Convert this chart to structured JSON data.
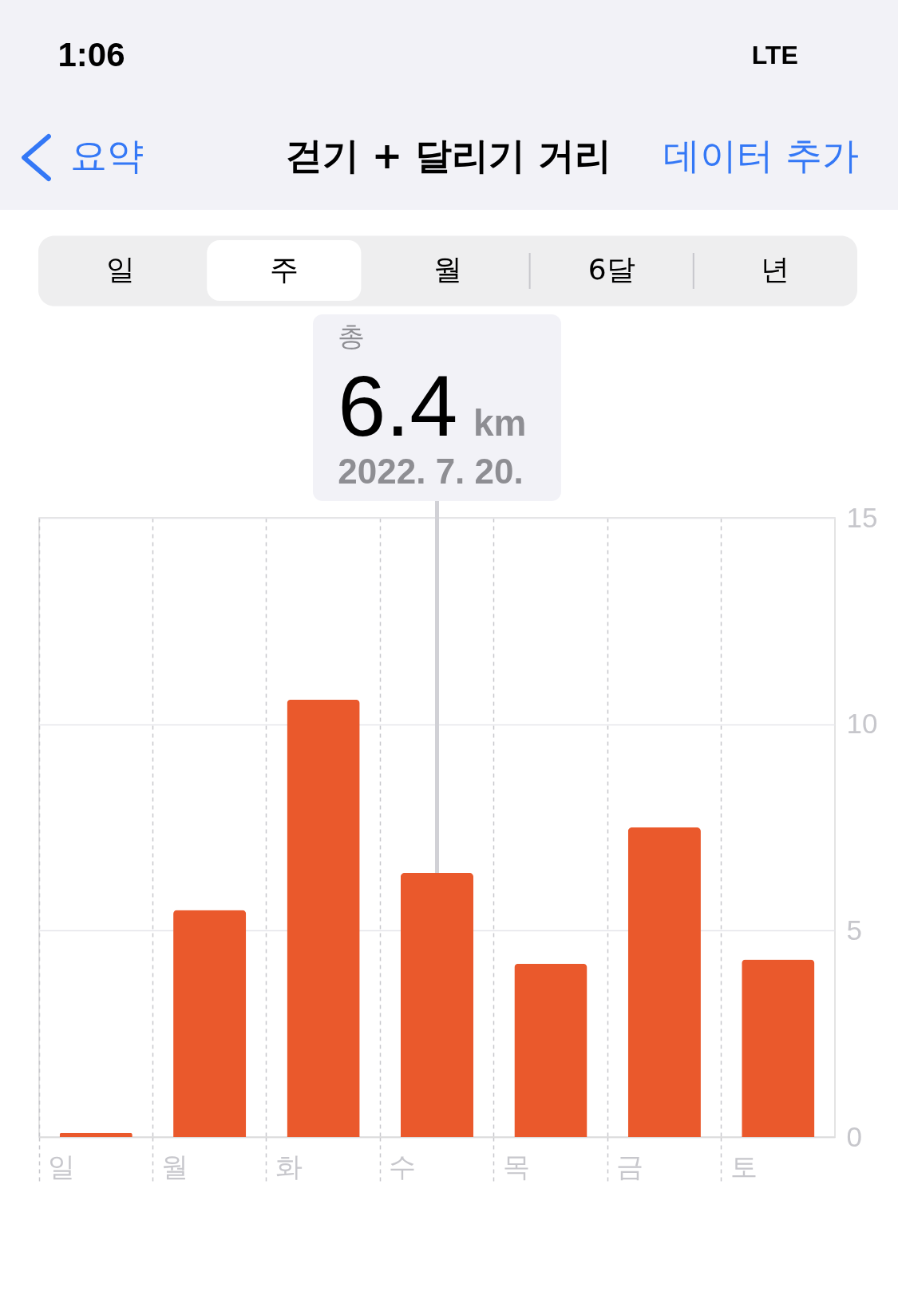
{
  "chart_data": {
    "type": "bar",
    "title": "걷기 + 달리기 거리",
    "categories": [
      "일",
      "월",
      "화",
      "수",
      "목",
      "금",
      "토"
    ],
    "values": [
      0.1,
      5.5,
      10.6,
      6.4,
      4.2,
      7.5,
      4.3
    ],
    "color": "#ea592c",
    "ylim": [
      0,
      15
    ],
    "yticks": [
      0,
      5,
      10,
      15
    ],
    "grid": true,
    "annotations": [
      "1:06",
      "LTE",
      "요약",
      "데이터 추가",
      "일",
      "주",
      "월",
      "6달",
      "년",
      "총",
      "6.4",
      "km",
      "2022. 7. 20."
    ]
  }
}
